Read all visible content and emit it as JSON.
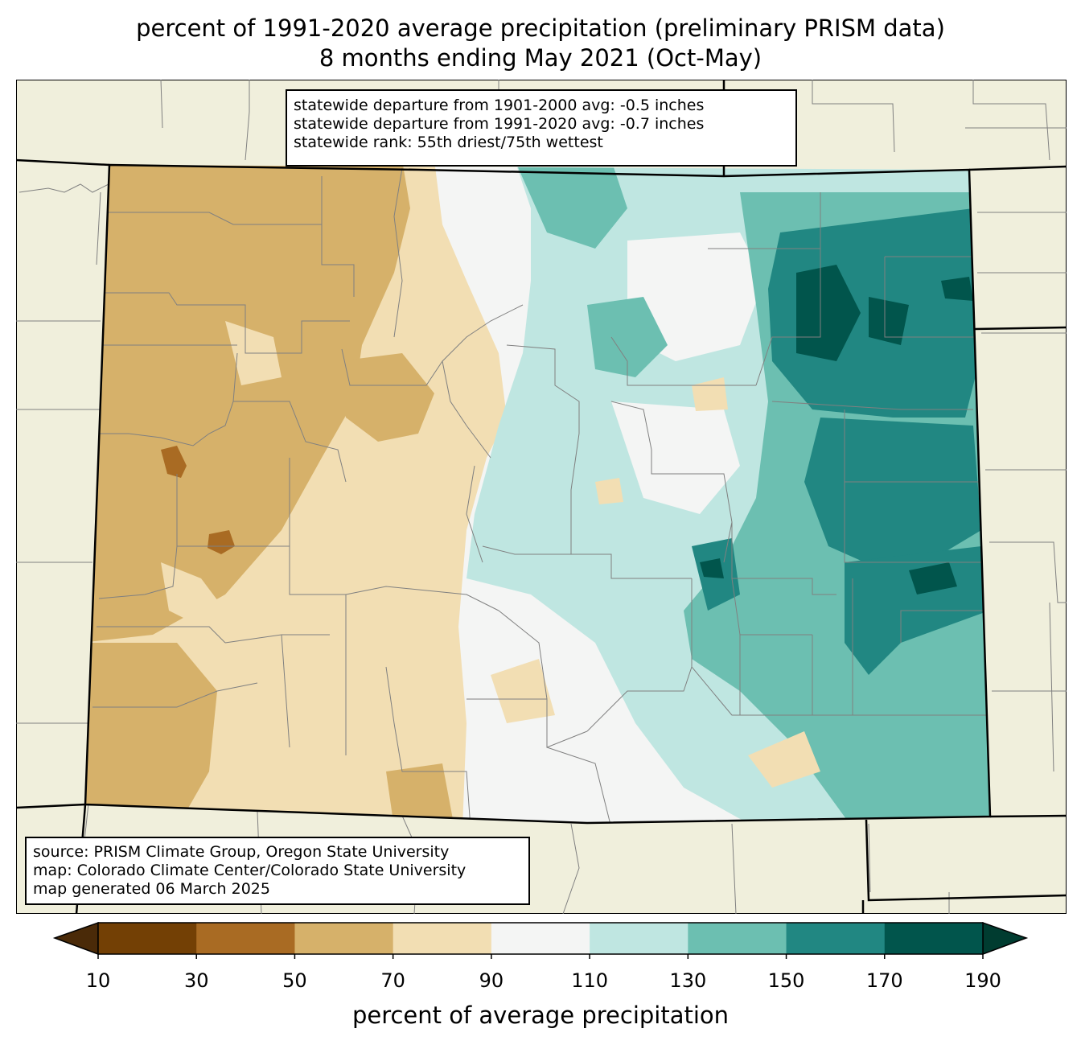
{
  "title_line1": "percent of 1991-2020 average precipitation (preliminary PRISM data)",
  "title_line2": "8 months ending May 2021 (Oct-May)",
  "stats": [
    "statewide departure from 1901-2000 avg: -0.5 inches",
    "statewide departure from 1991-2020 avg: -0.7 inches",
    "statewide rank: 55th driest/75th wettest"
  ],
  "credits": [
    "source: PRISM Climate Group, Oregon State University",
    "map: Colorado Climate Center/Colorado State University",
    "map generated 06 March 2025"
  ],
  "colorbar": {
    "label": "percent of average precipitation",
    "ticks": [
      "10",
      "30",
      "50",
      "70",
      "90",
      "110",
      "130",
      "150",
      "170",
      "190"
    ],
    "under_color": "#4a2a08",
    "over_color": "#003c30",
    "colors": [
      "#734005",
      "#a96b23",
      "#d6b16a",
      "#f2deb3",
      "#f4f5f4",
      "#bfe6e1",
      "#6cbfb1",
      "#218782",
      "#01554c"
    ]
  },
  "map_colors": {
    "background_land": "#f0efdc",
    "state_border": "#000000",
    "county_border": "#808080"
  }
}
